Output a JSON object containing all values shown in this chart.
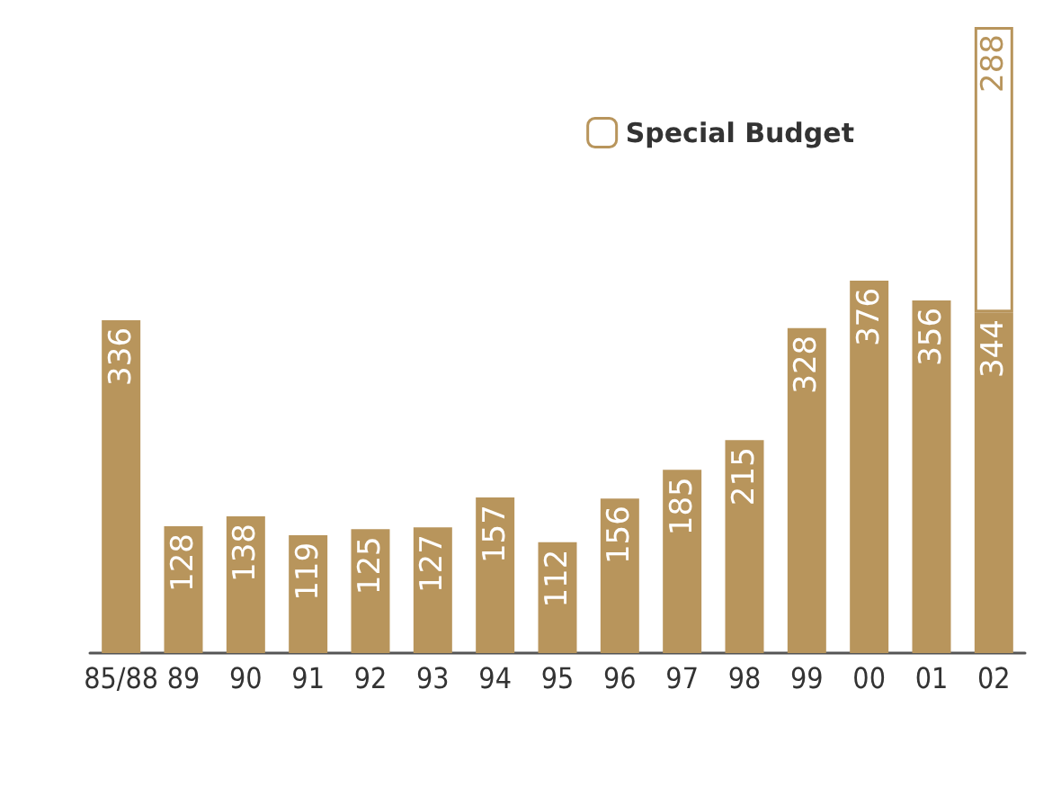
{
  "chart_data": {
    "type": "bar",
    "stacked": true,
    "data_labels": true,
    "legend": "top right",
    "categories": [
      "85/88",
      "89",
      "90",
      "91",
      "92",
      "93",
      "94",
      "95",
      "96",
      "97",
      "98",
      "99",
      "00",
      "01",
      "02"
    ],
    "series": [
      {
        "color": "#b8955c",
        "values": [
          336,
          128,
          138,
          119,
          125,
          127,
          157,
          112,
          156,
          185,
          215,
          328,
          376,
          356,
          344
        ]
      },
      {
        "name": "Special Budget",
        "color": "#ffffff",
        "values": [
          null,
          null,
          null,
          null,
          null,
          null,
          null,
          null,
          null,
          null,
          null,
          null,
          null,
          null,
          288
        ]
      }
    ]
  }
}
